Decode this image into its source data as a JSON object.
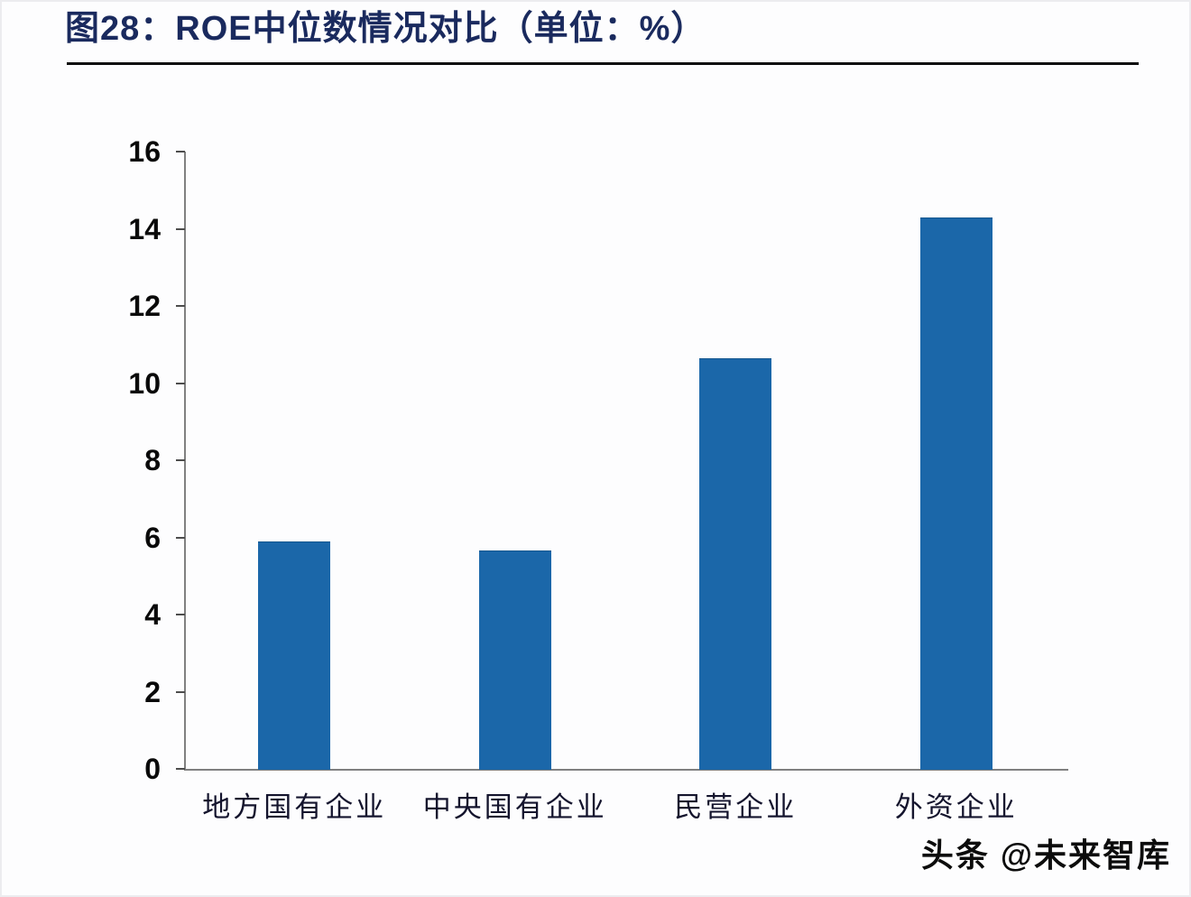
{
  "figure": {
    "title": "图28：ROE中位数情况对比（单位：%）",
    "watermark": "头条 @未来智库"
  },
  "chart_data": {
    "type": "bar",
    "title": "图28：ROE中位数情况对比（单位：%）",
    "unit": "%",
    "categories": [
      "地方国有企业",
      "中央国有企业",
      "民营企业",
      "外资企业"
    ],
    "values": [
      5.9,
      5.65,
      10.65,
      14.3
    ],
    "xlabel": "",
    "ylabel": "",
    "ylim": [
      0,
      16
    ],
    "yticks": [
      0,
      2,
      4,
      6,
      8,
      10,
      12,
      14,
      16
    ],
    "grid": false,
    "legend": "none",
    "bar_color": "#1b67a9",
    "axis_color": "#808080",
    "tick_color": "#4d4d4d",
    "title_color": "#1a2a5e"
  }
}
